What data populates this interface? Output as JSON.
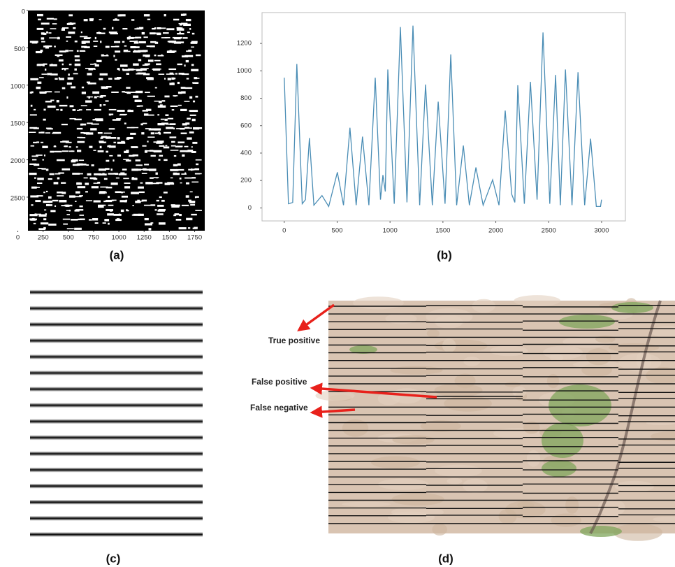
{
  "chart_data": [
    {
      "type": "image",
      "caption": "(a)",
      "xlim": [
        100,
        1850
      ],
      "ylim": [
        2950,
        0
      ],
      "xticks": [
        0,
        250,
        500,
        750,
        1000,
        1250,
        1500,
        1750
      ],
      "yticks": [
        0,
        500,
        1000,
        1500,
        2000,
        2500
      ]
    },
    {
      "type": "line",
      "caption": "(b)",
      "x": [
        0,
        40,
        80,
        119,
        170,
        200,
        238,
        280,
        357,
        420,
        502,
        560,
        621,
        680,
        740,
        800,
        860,
        910,
        933,
        955,
        979,
        1040,
        1098,
        1160,
        1217,
        1280,
        1336,
        1400,
        1455,
        1520,
        1574,
        1630,
        1693,
        1750,
        1812,
        1880,
        1970,
        2030,
        2089,
        2150,
        2180,
        2208,
        2270,
        2327,
        2390,
        2446,
        2510,
        2565,
        2610,
        2658,
        2720,
        2777,
        2840,
        2896,
        2950,
        2990,
        3000
      ],
      "series": [
        {
          "color": "#4a8db5",
          "values": [
            950,
            30,
            40,
            1050,
            30,
            60,
            510,
            20,
            90,
            10,
            260,
            20,
            585,
            20,
            520,
            20,
            950,
            60,
            240,
            120,
            1010,
            30,
            1320,
            40,
            1330,
            20,
            900,
            20,
            775,
            30,
            1120,
            20,
            455,
            20,
            295,
            20,
            205,
            20,
            710,
            100,
            40,
            895,
            30,
            920,
            60,
            1280,
            30,
            970,
            20,
            1010,
            20,
            990,
            20,
            505,
            10,
            10,
            60
          ]
        }
      ],
      "xlim": [
        -210,
        3225
      ],
      "ylim": [
        -95,
        1425
      ],
      "xticks": [
        0,
        500,
        1000,
        1500,
        2000,
        2500,
        3000
      ],
      "yticks": [
        0,
        200,
        400,
        600,
        800,
        1000,
        1200
      ]
    }
  ],
  "figure": {
    "panels": [
      {
        "caption": "(c)"
      },
      {
        "caption": "(d)",
        "annotations": [
          "True positive",
          "False positive",
          "False negative"
        ]
      }
    ]
  }
}
